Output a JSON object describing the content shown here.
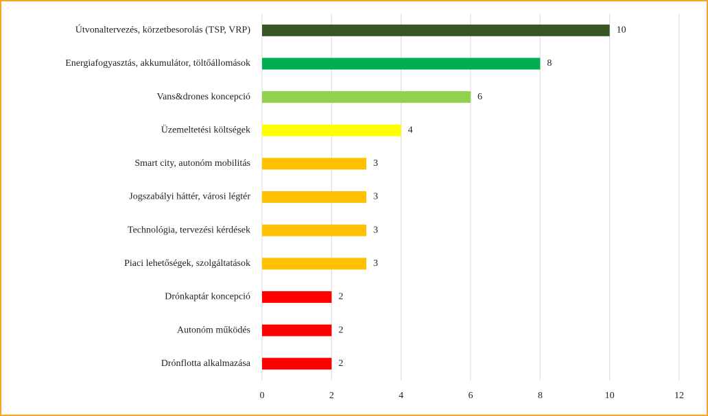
{
  "chart_data": {
    "type": "hbar",
    "categories": [
      "Útvonaltervezés, körzetbesorolás (TSP, VRP)",
      "Energiafogyasztás, akkumulátor, töltőállomások",
      "Vans&drones koncepció",
      "Üzemeltetési költségek",
      "Smart city, autonóm mobilitás",
      "Jogszabályi háttér, városi légtér",
      "Technológia, tervezési kérdések",
      "Piaci lehetőségek, szolgáltatások",
      "Drónkaptár koncepció",
      "Autonóm működés",
      "Drónflotta alkalmazása"
    ],
    "values": [
      10,
      8,
      6,
      4,
      3,
      3,
      3,
      3,
      2,
      2,
      2
    ],
    "colors": [
      "#375623",
      "#00b050",
      "#92d050",
      "#ffff00",
      "#ffc000",
      "#ffc000",
      "#ffc000",
      "#ffc000",
      "#ff0000",
      "#ff0000",
      "#ff0000"
    ],
    "xlim": [
      0,
      12
    ],
    "xticks": [
      0,
      2,
      4,
      6,
      8,
      10,
      12
    ],
    "grid": true
  }
}
